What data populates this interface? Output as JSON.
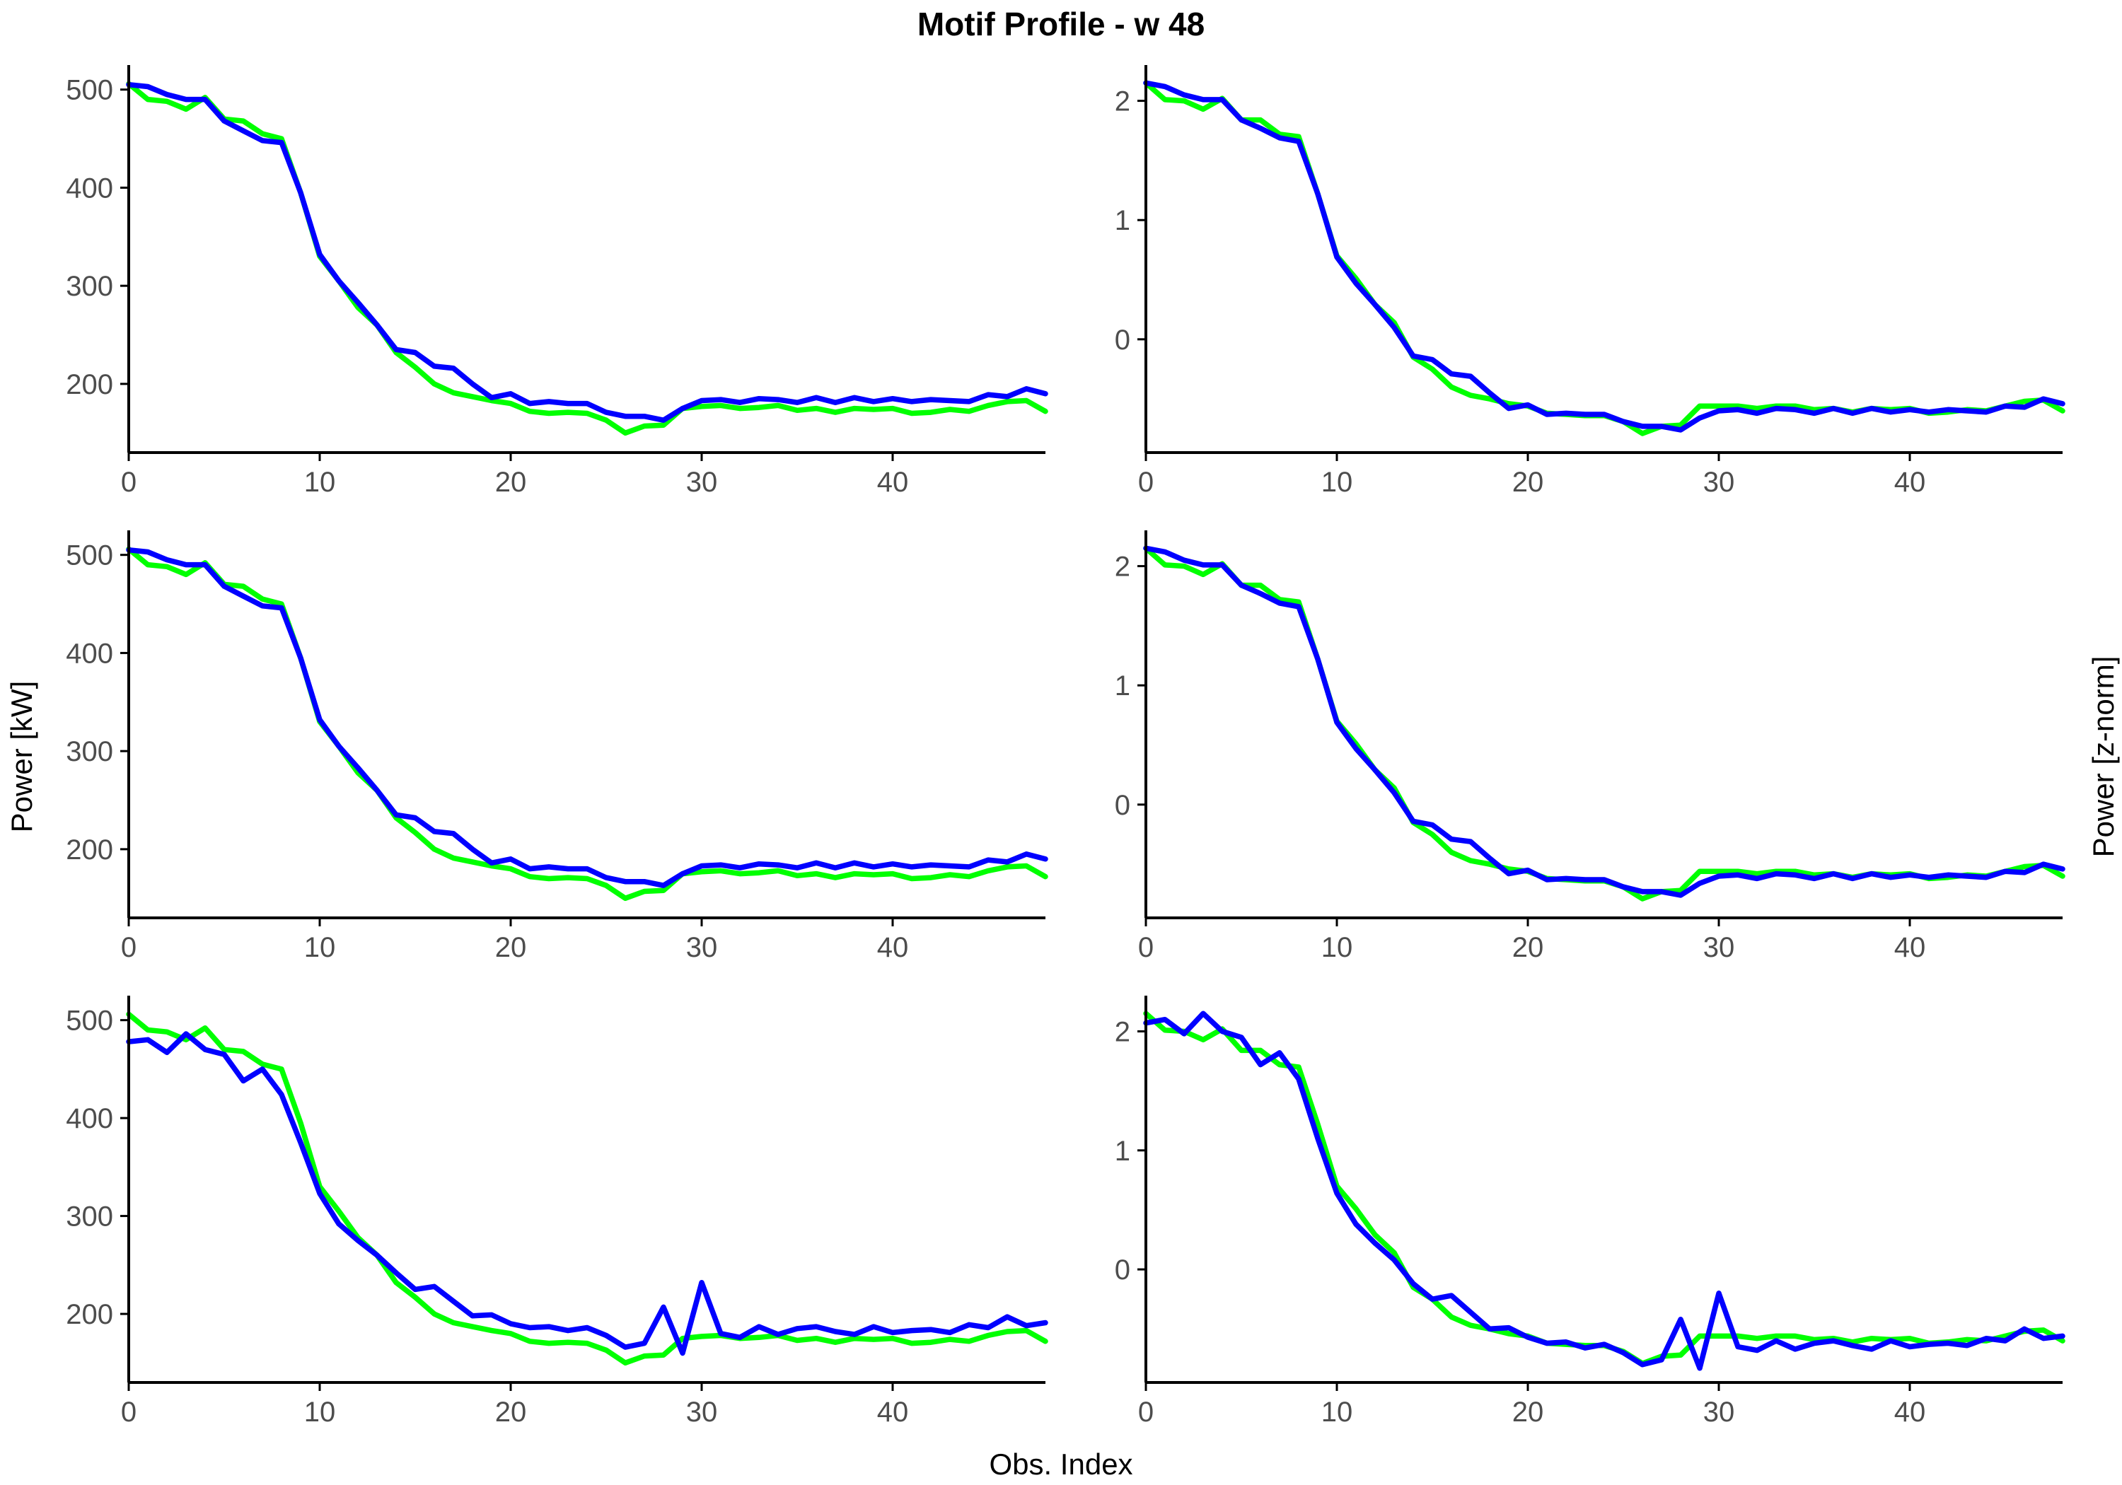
{
  "title": "Motif Profile - w 48",
  "xlabel": "Obs. Index",
  "ylabel_left": "Power [kW]",
  "ylabel_right": "Power [z-norm]",
  "colors": {
    "reference": "#00ff00",
    "match": "#0000ff"
  },
  "chart_data": [
    {
      "type": "line",
      "panel_row": 1,
      "panel_col": 1,
      "xlim": [
        0,
        48
      ],
      "ylim": [
        130,
        525
      ],
      "x_ticks": [
        0,
        10,
        20,
        30,
        40
      ],
      "y_ticks": [
        200,
        300,
        400,
        500
      ],
      "grid": false,
      "series": [
        {
          "color": "#00ff00",
          "values": [
            506,
            490,
            488,
            480,
            492,
            470,
            468,
            455,
            450,
            395,
            330,
            305,
            278,
            260,
            232,
            217,
            200,
            191,
            187,
            183,
            180,
            172,
            170,
            171,
            170,
            163,
            150,
            157,
            158,
            175,
            177,
            178,
            175,
            176,
            178,
            173,
            175,
            171,
            175,
            174,
            175,
            170,
            171,
            174,
            172,
            178,
            182,
            183,
            172
          ]
        },
        {
          "color": "#0000ff",
          "values": [
            505,
            503,
            495,
            490,
            490,
            468,
            458,
            448,
            446,
            395,
            332,
            305,
            283,
            260,
            235,
            232,
            218,
            216,
            200,
            186,
            190,
            180,
            182,
            180,
            180,
            171,
            167,
            167,
            163,
            175,
            183,
            184,
            181,
            185,
            184,
            181,
            186,
            181,
            186,
            182,
            185,
            182,
            184,
            183,
            182,
            189,
            187,
            195,
            190
          ]
        }
      ]
    },
    {
      "type": "line",
      "panel_row": 1,
      "panel_col": 2,
      "xlim": [
        0,
        48
      ],
      "ylim": [
        -0.95,
        2.3
      ],
      "x_ticks": [
        0,
        10,
        20,
        30,
        40
      ],
      "y_ticks": [
        0,
        1,
        2
      ],
      "grid": false,
      "series": [
        {
          "color": "#00ff00",
          "values": [
            2.15,
            2.01,
            2.0,
            1.93,
            2.02,
            1.84,
            1.84,
            1.72,
            1.7,
            1.22,
            0.7,
            0.51,
            0.29,
            0.14,
            -0.15,
            -0.25,
            -0.4,
            -0.47,
            -0.5,
            -0.54,
            -0.56,
            -0.62,
            -0.63,
            -0.64,
            -0.64,
            -0.69,
            -0.79,
            -0.73,
            -0.72,
            -0.56,
            -0.56,
            -0.56,
            -0.58,
            -0.56,
            -0.56,
            -0.59,
            -0.58,
            -0.61,
            -0.58,
            -0.59,
            -0.58,
            -0.62,
            -0.61,
            -0.59,
            -0.6,
            -0.56,
            -0.52,
            -0.51,
            -0.6
          ]
        },
        {
          "color": "#0000ff",
          "values": [
            2.15,
            2.12,
            2.05,
            2.01,
            2.01,
            1.84,
            1.77,
            1.69,
            1.66,
            1.22,
            0.69,
            0.47,
            0.29,
            0.1,
            -0.14,
            -0.17,
            -0.29,
            -0.31,
            -0.45,
            -0.58,
            -0.55,
            -0.63,
            -0.62,
            -0.63,
            -0.63,
            -0.69,
            -0.73,
            -0.73,
            -0.76,
            -0.66,
            -0.6,
            -0.59,
            -0.62,
            -0.58,
            -0.59,
            -0.62,
            -0.58,
            -0.62,
            -0.58,
            -0.61,
            -0.59,
            -0.61,
            -0.59,
            -0.6,
            -0.61,
            -0.56,
            -0.57,
            -0.5,
            -0.54
          ]
        }
      ]
    },
    {
      "type": "line",
      "panel_row": 2,
      "panel_col": 1,
      "xlim": [
        0,
        48
      ],
      "ylim": [
        130,
        525
      ],
      "x_ticks": [
        0,
        10,
        20,
        30,
        40
      ],
      "y_ticks": [
        200,
        300,
        400,
        500
      ],
      "grid": false,
      "series": [
        {
          "color": "#00ff00",
          "values": [
            506,
            490,
            488,
            480,
            492,
            470,
            468,
            455,
            450,
            395,
            330,
            305,
            278,
            260,
            232,
            217,
            200,
            191,
            187,
            183,
            180,
            172,
            170,
            171,
            170,
            163,
            150,
            157,
            158,
            175,
            177,
            178,
            175,
            176,
            178,
            173,
            175,
            171,
            175,
            174,
            175,
            170,
            171,
            174,
            172,
            178,
            182,
            183,
            172
          ]
        },
        {
          "color": "#0000ff",
          "values": [
            505,
            503,
            495,
            490,
            490,
            468,
            458,
            448,
            446,
            395,
            332,
            305,
            283,
            260,
            235,
            232,
            218,
            216,
            200,
            186,
            190,
            180,
            182,
            180,
            180,
            171,
            167,
            167,
            163,
            175,
            183,
            184,
            181,
            185,
            184,
            181,
            186,
            181,
            186,
            182,
            185,
            182,
            184,
            183,
            182,
            189,
            187,
            195,
            190
          ]
        }
      ]
    },
    {
      "type": "line",
      "panel_row": 2,
      "panel_col": 2,
      "xlim": [
        0,
        48
      ],
      "ylim": [
        -0.95,
        2.3
      ],
      "x_ticks": [
        0,
        10,
        20,
        30,
        40
      ],
      "y_ticks": [
        0,
        1,
        2
      ],
      "grid": false,
      "series": [
        {
          "color": "#00ff00",
          "values": [
            2.15,
            2.01,
            2.0,
            1.93,
            2.02,
            1.84,
            1.84,
            1.72,
            1.7,
            1.22,
            0.7,
            0.51,
            0.29,
            0.14,
            -0.15,
            -0.25,
            -0.4,
            -0.47,
            -0.5,
            -0.54,
            -0.56,
            -0.62,
            -0.63,
            -0.64,
            -0.64,
            -0.69,
            -0.79,
            -0.73,
            -0.72,
            -0.56,
            -0.56,
            -0.56,
            -0.58,
            -0.56,
            -0.56,
            -0.59,
            -0.58,
            -0.61,
            -0.58,
            -0.59,
            -0.58,
            -0.62,
            -0.61,
            -0.59,
            -0.6,
            -0.56,
            -0.52,
            -0.51,
            -0.6
          ]
        },
        {
          "color": "#0000ff",
          "values": [
            2.15,
            2.12,
            2.05,
            2.01,
            2.01,
            1.84,
            1.77,
            1.69,
            1.66,
            1.22,
            0.69,
            0.47,
            0.29,
            0.1,
            -0.14,
            -0.17,
            -0.29,
            -0.31,
            -0.45,
            -0.58,
            -0.55,
            -0.63,
            -0.62,
            -0.63,
            -0.63,
            -0.69,
            -0.73,
            -0.73,
            -0.76,
            -0.66,
            -0.6,
            -0.59,
            -0.62,
            -0.58,
            -0.59,
            -0.62,
            -0.58,
            -0.62,
            -0.58,
            -0.61,
            -0.59,
            -0.61,
            -0.59,
            -0.6,
            -0.61,
            -0.56,
            -0.57,
            -0.5,
            -0.54
          ]
        }
      ]
    },
    {
      "type": "line",
      "panel_row": 3,
      "panel_col": 1,
      "xlim": [
        0,
        48
      ],
      "ylim": [
        130,
        525
      ],
      "x_ticks": [
        0,
        10,
        20,
        30,
        40
      ],
      "y_ticks": [
        200,
        300,
        400,
        500
      ],
      "grid": false,
      "series": [
        {
          "color": "#00ff00",
          "values": [
            506,
            490,
            488,
            480,
            492,
            470,
            468,
            455,
            450,
            395,
            330,
            305,
            278,
            260,
            232,
            217,
            200,
            191,
            187,
            183,
            180,
            172,
            170,
            171,
            170,
            163,
            150,
            157,
            158,
            175,
            177,
            178,
            175,
            176,
            178,
            173,
            175,
            171,
            175,
            174,
            175,
            170,
            171,
            174,
            172,
            178,
            182,
            183,
            172
          ]
        },
        {
          "color": "#0000ff",
          "values": [
            478,
            480,
            467,
            486,
            470,
            465,
            438,
            450,
            424,
            375,
            323,
            292,
            275,
            260,
            242,
            225,
            228,
            213,
            198,
            199,
            190,
            186,
            187,
            183,
            186,
            178,
            166,
            170,
            207,
            160,
            232,
            180,
            176,
            187,
            179,
            185,
            187,
            182,
            179,
            187,
            181,
            183,
            184,
            181,
            189,
            186,
            197,
            188,
            191
          ]
        }
      ]
    },
    {
      "type": "line",
      "panel_row": 3,
      "panel_col": 2,
      "xlim": [
        0,
        48
      ],
      "ylim": [
        -0.95,
        2.3
      ],
      "x_ticks": [
        0,
        10,
        20,
        30,
        40
      ],
      "y_ticks": [
        0,
        1,
        2
      ],
      "grid": false,
      "series": [
        {
          "color": "#00ff00",
          "values": [
            2.15,
            2.01,
            2.0,
            1.93,
            2.02,
            1.84,
            1.84,
            1.72,
            1.7,
            1.22,
            0.7,
            0.51,
            0.29,
            0.14,
            -0.15,
            -0.25,
            -0.4,
            -0.47,
            -0.5,
            -0.54,
            -0.56,
            -0.62,
            -0.63,
            -0.64,
            -0.64,
            -0.69,
            -0.79,
            -0.73,
            -0.72,
            -0.56,
            -0.56,
            -0.56,
            -0.58,
            -0.56,
            -0.56,
            -0.59,
            -0.58,
            -0.61,
            -0.58,
            -0.59,
            -0.58,
            -0.62,
            -0.61,
            -0.59,
            -0.6,
            -0.56,
            -0.52,
            -0.51,
            -0.6
          ]
        },
        {
          "color": "#0000ff",
          "values": [
            2.07,
            2.1,
            1.98,
            2.15,
            2.0,
            1.95,
            1.72,
            1.82,
            1.6,
            1.1,
            0.64,
            0.38,
            0.22,
            0.08,
            -0.12,
            -0.25,
            -0.22,
            -0.36,
            -0.5,
            -0.49,
            -0.57,
            -0.62,
            -0.61,
            -0.66,
            -0.63,
            -0.7,
            -0.8,
            -0.76,
            -0.42,
            -0.83,
            -0.2,
            -0.65,
            -0.68,
            -0.6,
            -0.67,
            -0.62,
            -0.6,
            -0.64,
            -0.67,
            -0.6,
            -0.65,
            -0.63,
            -0.62,
            -0.64,
            -0.58,
            -0.6,
            -0.5,
            -0.58,
            -0.56
          ]
        }
      ]
    }
  ]
}
